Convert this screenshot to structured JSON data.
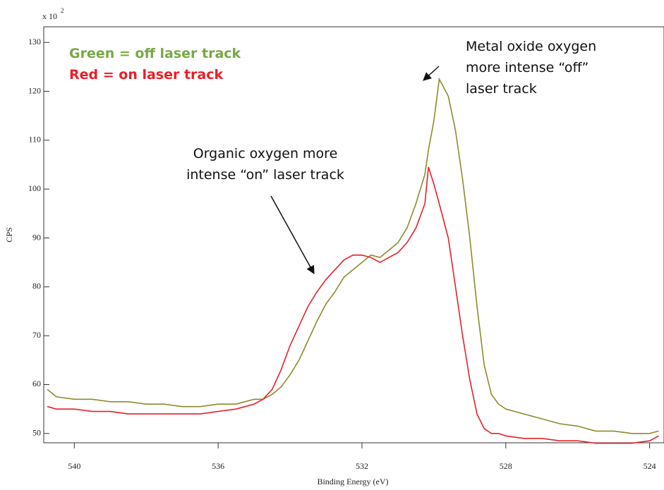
{
  "chart_data": {
    "type": "line",
    "x_label": "Binding Energy (eV)",
    "y_label": "CPS",
    "y_scale_label": "x 10",
    "y_scale_exponent": "2",
    "x": [
      540.75,
      540.5,
      540,
      539.5,
      539,
      538.5,
      538,
      537.5,
      537,
      536.5,
      536,
      535.5,
      535,
      534.75,
      534.5,
      534.25,
      534,
      533.75,
      533.5,
      533.25,
      533,
      532.75,
      532.5,
      532.25,
      532,
      531.75,
      531.5,
      531.25,
      531,
      530.75,
      530.5,
      530.25,
      530.15,
      530,
      529.85,
      529.6,
      529.4,
      529.2,
      529,
      528.8,
      528.6,
      528.4,
      528.2,
      528,
      527.5,
      527,
      526.5,
      526,
      525.5,
      525,
      524.5,
      524,
      523.75
    ],
    "series": [
      {
        "name": "Green = off laser track",
        "color": "#8c8c2c",
        "label_color": "#78a846",
        "values": [
          59,
          57.5,
          57,
          57,
          56.5,
          56.5,
          56,
          56,
          55.5,
          55.5,
          56,
          56,
          57,
          57,
          58,
          59.5,
          62,
          65,
          69,
          73,
          76.5,
          79,
          82,
          83.5,
          85,
          86.5,
          86,
          87.5,
          89,
          92,
          97,
          103,
          108,
          114,
          122.5,
          119,
          112,
          102,
          90,
          76,
          64,
          58,
          56,
          55,
          54,
          53,
          52,
          51.5,
          50.5,
          50.5,
          50,
          50,
          50.5
        ]
      },
      {
        "name": "Red = on laser track",
        "color": "#e8202a",
        "label_color": "#ee1c25",
        "values": [
          55.5,
          55,
          55,
          54.5,
          54.5,
          54,
          54,
          54,
          54,
          54,
          54.5,
          55,
          56,
          57,
          59,
          63,
          68,
          72,
          76,
          79,
          81.5,
          83.5,
          85.5,
          86.5,
          86.5,
          86,
          85,
          86,
          87,
          89,
          92,
          97,
          104.5,
          101,
          97,
          90,
          80,
          70,
          61,
          54,
          51,
          50,
          50,
          49.5,
          49,
          49,
          48.5,
          48.5,
          48,
          48,
          48,
          48.5,
          49.5
        ]
      }
    ],
    "xlim": [
      540.85,
      523.6
    ],
    "ylim": [
      48.1,
      133.2
    ],
    "xticks": [
      540,
      536,
      532,
      528,
      524
    ],
    "yticks": [
      50,
      60,
      70,
      80,
      90,
      100,
      110,
      120,
      130
    ],
    "legend": "upper left",
    "annotations": [
      {
        "lines": [
          "Metal oxide oxygen",
          "more intense “off”",
          "laser track"
        ]
      },
      {
        "lines": [
          "Organic oxygen more",
          "intense “on” laser track"
        ]
      }
    ]
  }
}
